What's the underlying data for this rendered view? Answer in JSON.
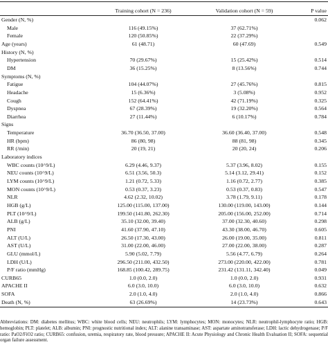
{
  "header": {
    "label": "",
    "training": "Training cohort (N = 236)",
    "validation": "Validation cohort (N = 59)",
    "pvalue": "P value"
  },
  "rows": [
    {
      "label": "Gender (N, %)",
      "indent": 0,
      "training": "",
      "validation": "",
      "p": "0.062"
    },
    {
      "label": "Male",
      "indent": 1,
      "training": "116 (49.15%)",
      "validation": "37 (62.71%)",
      "p": ""
    },
    {
      "label": "Female",
      "indent": 1,
      "training": "120 (50.85%)",
      "validation": "22 (37.29%)",
      "p": ""
    },
    {
      "label": "Age (years)",
      "indent": 0,
      "training": "61 (48.71)",
      "validation": "60 (47.69)",
      "p": "0.549"
    },
    {
      "label": "History (N, %)",
      "indent": 0,
      "training": "",
      "validation": "",
      "p": ""
    },
    {
      "label": "Hypertension",
      "indent": 1,
      "training": "70 (29.67%)",
      "validation": "15 (25.42%)",
      "p": "0.514"
    },
    {
      "label": "DM",
      "indent": 1,
      "training": "36 (15.25%)",
      "validation": "8 (13.56%)",
      "p": "0.744"
    },
    {
      "label": "Symptoms (N, %)",
      "indent": 0,
      "training": "",
      "validation": "",
      "p": ""
    },
    {
      "label": "Fatigue",
      "indent": 1,
      "training": "104 (44.07%)",
      "validation": "27 (45.76%)",
      "p": "0.815"
    },
    {
      "label": "Headache",
      "indent": 1,
      "training": "15 (6.36%)",
      "validation": "3 (5.08%)",
      "p": "0.952"
    },
    {
      "label": "Cough",
      "indent": 1,
      "training": "152 (64.41%)",
      "validation": "42 (71.19%)",
      "p": "0.325"
    },
    {
      "label": "Dyspnea",
      "indent": 1,
      "training": "67 (28.39%)",
      "validation": "19 (32.20%)",
      "p": "0.564"
    },
    {
      "label": "Diarrhea",
      "indent": 1,
      "training": "27 (11.44%)",
      "validation": "6 (10.17%)",
      "p": "0.784"
    },
    {
      "label": "Signs",
      "indent": 0,
      "training": "",
      "validation": "",
      "p": ""
    },
    {
      "label": "Temperature",
      "indent": 1,
      "training": "36.70 (36.50, 37.00)",
      "validation": "36.60 (36.40, 37.00)",
      "p": "0.548"
    },
    {
      "label": "HR (bpm)",
      "indent": 1,
      "training": "86 (80, 98)",
      "validation": "88 (81, 98)",
      "p": "0.345"
    },
    {
      "label": "RR (/min)",
      "indent": 1,
      "training": "20 (19, 21)",
      "validation": "20 (20, 24)",
      "p": "0.206"
    },
    {
      "label": "Laboratory indices",
      "indent": 0,
      "training": "",
      "validation": "",
      "p": ""
    },
    {
      "label": "WBC counts (10^9/L)",
      "indent": 1,
      "training": "6.29 (4.46, 9.37)",
      "validation": "5.37 (3.96, 8.02)",
      "p": "0.155"
    },
    {
      "label": "NEU counts (10^9/L)",
      "indent": 1,
      "training": "6.51 (3.56, 50.3)",
      "validation": "5.14 (3.12, 29.41)",
      "p": "0.152"
    },
    {
      "label": "LYM counts (10^9/L)",
      "indent": 1,
      "training": "1.21 (0.72, 5.33)",
      "validation": "1.16 (0.72, 2.77)",
      "p": "0.385"
    },
    {
      "label": "MON counts (10^9/L)",
      "indent": 1,
      "training": "0.53 (0.37, 3.23)",
      "validation": "0.53 (0.37, 0.83)",
      "p": "0.547"
    },
    {
      "label": "NLR",
      "indent": 1,
      "training": "4.62 (2.32, 10.02)",
      "validation": "3.78 (1.79, 9.11)",
      "p": "0.178"
    },
    {
      "label": "HGB (g/L)",
      "indent": 1,
      "training": "125.00 (115.00, 137.00)",
      "validation": "130.00 (119.00, 143.00)",
      "p": "0.144"
    },
    {
      "label": "PLT (10^9/L)",
      "indent": 1,
      "training": "199.50 (141.80, 262.30)",
      "validation": "205.00 (156.00, 252.00)",
      "p": "0.714"
    },
    {
      "label": "ALB (g/L)",
      "indent": 1,
      "training": "35.10 (32.00, 39.40)",
      "validation": "37.00 (32.30, 40.60)",
      "p": "0.298"
    },
    {
      "label": "PNI",
      "indent": 1,
      "training": "41.60 (37.90, 47.10)",
      "validation": "43.30 (38.00, 46.70)",
      "p": "0.605"
    },
    {
      "label": "ALT (U/L)",
      "indent": 1,
      "training": "26.50 (17.30, 43.00)",
      "validation": "26.00 (19.00, 35.00)",
      "p": "0.811"
    },
    {
      "label": "AST (U/L)",
      "indent": 1,
      "training": "31.00 (22.00, 46.00)",
      "validation": "27.00 (22.00, 38.00)",
      "p": "0.287"
    },
    {
      "label": "GLU (mmol/L)",
      "indent": 1,
      "training": "5.90 (5.02, 7.79)",
      "validation": "5.56 (4.77, 6.79)",
      "p": "0.264"
    },
    {
      "label": "LDH (U/L)",
      "indent": 1,
      "training": "296.50 (211.00, 432.50)",
      "validation": "273.00 (220.00, 422.00)",
      "p": "0.781"
    },
    {
      "label": "P/F ratio (mmHg)",
      "indent": 1,
      "training": "168.85 (100.42, 289.75)",
      "validation": "231.42 (131.11, 342.40)",
      "p": "0.049"
    },
    {
      "label": "CURB65",
      "indent": 0,
      "training": "1.0 (0.0, 2.0)",
      "validation": "1.0 (0.0, 2.0)",
      "p": "0.931"
    },
    {
      "label": "APACHE II",
      "indent": 0,
      "training": "6.0 (3.0, 10.0)",
      "validation": "6.0 (3.0, 10.0)",
      "p": "0.632"
    },
    {
      "label": "SOFA",
      "indent": 0,
      "training": "2.0 (1.0, 4.0)",
      "validation": "2.0 (1.0, 4.0)",
      "p": "0.866"
    },
    {
      "label": "Death (N, %)",
      "indent": 0,
      "training": "63 (26.69%)",
      "validation": "14 (23.73%)",
      "p": "0.643"
    }
  ],
  "footnote": "Abbreviations: DM: diabetes mellitus; WBC: white blood cells; NEU: neutrophils; LYM: lymphocytes; MON: monocytes; NLR: neutrophil-lymphocyte ratio; HGB: hemoglobin; PLT: platelet; ALB: albumin; PNI: prognostic nutritional index; ALT: alanine transaminase; AST: aspartate aminotransferase; LDH: lactic dehydrogenase; P/F ratio: PaO2/FiO2 ratio; CURB65: confusion, uremia, respiratory rate, blood pressure; APACHE II: Acute Physiology and Chronic Health Evaluation II; SOFA: sequential organ failure assessment."
}
